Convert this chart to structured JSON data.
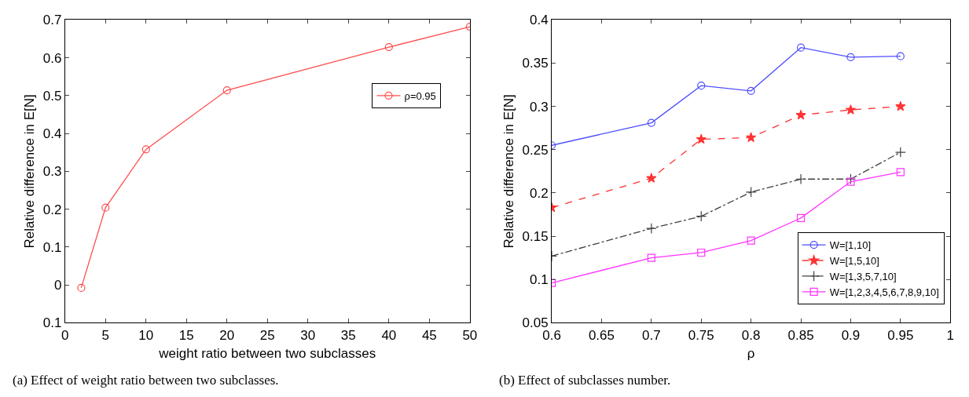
{
  "chart_data": [
    {
      "type": "line",
      "xlabel": "weight ratio between two subclasses",
      "ylabel": "Relative difference in E[N]",
      "x": [
        2,
        5,
        10,
        20,
        40,
        50
      ],
      "series": [
        {
          "name": "ρ=0.95",
          "color": "#ff4d4d",
          "values": [
            -0.008,
            0.204,
            0.358,
            0.514,
            0.628,
            0.682
          ],
          "marker": "circle",
          "line_style": "solid"
        }
      ],
      "xlim": [
        0,
        50
      ],
      "xticks": [
        0,
        5,
        10,
        15,
        20,
        25,
        30,
        35,
        40,
        45,
        50
      ],
      "ylim": [
        -0.1,
        0.7
      ],
      "yticks": [
        {
          "value": -0.1,
          "label": "0.1"
        },
        0,
        0.1,
        0.2,
        0.3,
        0.4,
        0.5,
        0.6,
        0.7
      ],
      "legend": "right",
      "annotations": [
        "(a) Effect of weight ratio between two subclasses."
      ]
    },
    {
      "type": "line",
      "xlabel": "ρ",
      "ylabel": "Relative difference in E[N]",
      "x": [
        0.6,
        0.7,
        0.75,
        0.8,
        0.85,
        0.9,
        0.95
      ],
      "series": [
        {
          "name": "W=[1,10]",
          "color": "#4d4dff",
          "values": [
            0.255,
            0.281,
            0.324,
            0.318,
            0.368,
            0.357,
            0.358
          ],
          "marker": "circle",
          "line_style": "solid"
        },
        {
          "name": "W=[1,5,10]",
          "color": "#ff3333",
          "values": [
            0.183,
            0.217,
            0.262,
            0.264,
            0.29,
            0.296,
            0.3
          ],
          "marker": "star",
          "line_style": "dashed"
        },
        {
          "name": "W=[1,3,5,7,10]",
          "color": "#404040",
          "values": [
            0.127,
            0.159,
            0.173,
            0.201,
            0.216,
            0.216,
            0.247
          ],
          "marker": "cross",
          "line_style": "dashdot"
        },
        {
          "name": "W=[1,2,3,4,5,6,7,8,9,10]",
          "color": "#ff33ff",
          "values": [
            0.096,
            0.125,
            0.131,
            0.145,
            0.171,
            0.213,
            0.224
          ],
          "marker": "square",
          "line_style": "solid"
        }
      ],
      "xlim": [
        0.6,
        1
      ],
      "xticks": [
        0.6,
        0.65,
        0.7,
        0.75,
        0.8,
        0.85,
        0.9,
        0.95,
        1
      ],
      "ylim": [
        0.05,
        0.4
      ],
      "yticks": [
        0.05,
        0.1,
        0.15,
        0.2,
        0.25,
        0.3,
        0.35,
        0.4
      ],
      "legend": "bottom right",
      "annotations": [
        "(b) Effect of subclasses number."
      ]
    }
  ]
}
